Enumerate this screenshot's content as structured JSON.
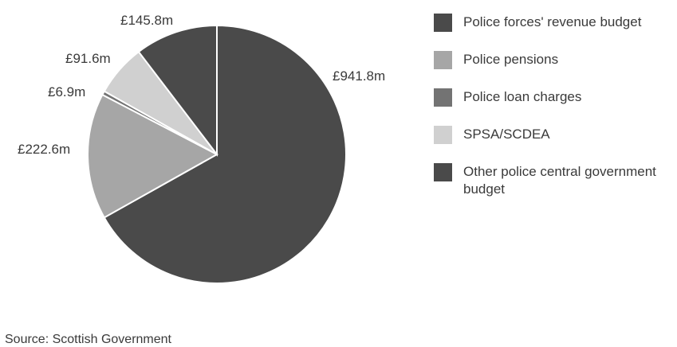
{
  "colors": {
    "dark": "#4a4a4a",
    "mid": "#a6a6a6",
    "darkgrey": "#737373",
    "light": "#d0d0d0",
    "slice_border": "#ffffff"
  },
  "chart_data": {
    "type": "pie",
    "title": "",
    "slices": [
      {
        "name": "Police forces' revenue budget",
        "value": 941.8,
        "label": "£941.8m",
        "color": "#4a4a4a"
      },
      {
        "name": "Police pensions",
        "value": 222.6,
        "label": "£222.6m",
        "color": "#a6a6a6"
      },
      {
        "name": "Police loan charges",
        "value": 6.9,
        "label": "£6.9m",
        "color": "#737373"
      },
      {
        "name": "SPSA/SCDEA",
        "value": 91.6,
        "label": "£91.6m",
        "color": "#d0d0d0"
      },
      {
        "name": "Other police central government budget",
        "value": 145.8,
        "label": "£145.8m",
        "color": "#4a4a4a"
      }
    ],
    "legend_placement": "right",
    "start": "12 o'clock",
    "direction": "clockwise"
  },
  "legend": {
    "items": [
      {
        "label": "Police forces' revenue budget",
        "color": "#4a4a4a"
      },
      {
        "label": "Police pensions",
        "color": "#a6a6a6"
      },
      {
        "label": "Police loan charges",
        "color": "#737373"
      },
      {
        "label": "SPSA/SCDEA",
        "color": "#d0d0d0"
      },
      {
        "label": "Other police central government budget",
        "color": "#4a4a4a"
      }
    ]
  },
  "source": {
    "text": "Source: Scottish Government"
  }
}
